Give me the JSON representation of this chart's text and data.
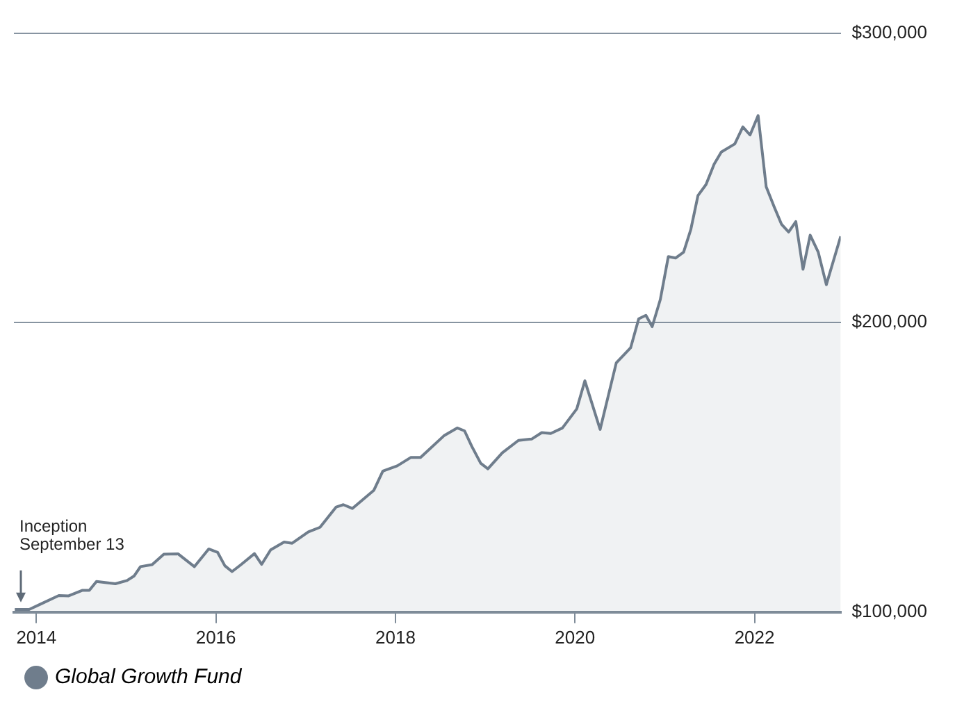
{
  "chart_data": {
    "type": "area",
    "x": [
      2013.76,
      2013.92,
      2014.05,
      2014.25,
      2014.36,
      2014.51,
      2014.59,
      2014.67,
      2014.88,
      2015.01,
      2015.09,
      2015.16,
      2015.29,
      2015.42,
      2015.58,
      2015.76,
      2015.92,
      2016.02,
      2016.1,
      2016.18,
      2016.28,
      2016.43,
      2016.51,
      2016.61,
      2016.76,
      2016.85,
      2017.03,
      2017.16,
      2017.34,
      2017.42,
      2017.52,
      2017.76,
      2017.86,
      2018.02,
      2018.17,
      2018.28,
      2018.54,
      2018.69,
      2018.77,
      2018.85,
      2018.95,
      2019.03,
      2019.19,
      2019.37,
      2019.52,
      2019.63,
      2019.73,
      2019.86,
      2020.02,
      2020.11,
      2020.28,
      2020.46,
      2020.62,
      2020.71,
      2020.79,
      2020.86,
      2020.95,
      2021.04,
      2021.12,
      2021.21,
      2021.29,
      2021.37,
      2021.46,
      2021.55,
      2021.63,
      2021.78,
      2021.87,
      2021.95,
      2022.04,
      2022.13,
      2022.22,
      2022.3,
      2022.38,
      2022.46,
      2022.54,
      2022.62,
      2022.71,
      2022.8,
      2022.96
    ],
    "series": [
      {
        "name": "Global Growth Fund",
        "color": "#6f7d8c",
        "values": [
          100900,
          100900,
          102800,
          105700,
          105600,
          107500,
          107500,
          110600,
          109800,
          110900,
          112500,
          115700,
          116400,
          120000,
          120100,
          115700,
          121800,
          120600,
          116000,
          114000,
          116400,
          120200,
          116500,
          121500,
          124200,
          123800,
          127700,
          129300,
          136300,
          137100,
          135800,
          142100,
          148700,
          150500,
          153400,
          153400,
          160900,
          163600,
          162600,
          157300,
          151400,
          149500,
          155000,
          159300,
          159800,
          162000,
          161700,
          163600,
          170200,
          179900,
          163100,
          186100,
          191300,
          201300,
          202500,
          198600,
          207900,
          222800,
          222300,
          224300,
          232100,
          243900,
          247700,
          254700,
          258900,
          261700,
          267600,
          264800,
          271500,
          246900,
          239900,
          234000,
          231300,
          234900,
          218400,
          230200,
          224300,
          213100,
          229800
        ]
      }
    ],
    "xlim": [
      2013.75,
      2022.96
    ],
    "xticks": [
      2014,
      2016,
      2018,
      2020,
      2022
    ],
    "ylim": [
      100000,
      300000
    ],
    "yticks": [
      {
        "value": 100000,
        "label": "$100,000"
      },
      {
        "value": 200000,
        "label": "$200,000"
      },
      {
        "value": 300000,
        "label": "$300,000"
      }
    ],
    "grid": "y",
    "legend": "bottom left",
    "marker": "none",
    "annotations": [
      "Inception\nSeptember 13"
    ]
  }
}
